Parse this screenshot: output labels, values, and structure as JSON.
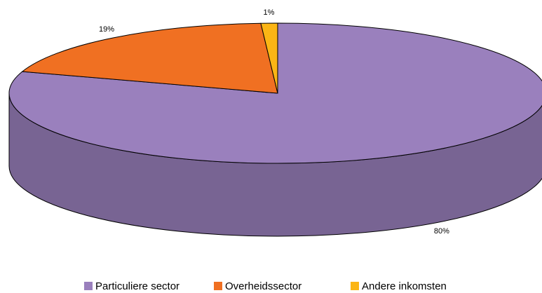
{
  "chart_data": {
    "type": "pie",
    "categories": [
      "Particuliere sector",
      "Overheidssector",
      "Andere inkomsten"
    ],
    "values": [
      80,
      19,
      1
    ],
    "value_labels": [
      "80%",
      "19%",
      "1%"
    ],
    "colors": [
      "#9a80bd",
      "#f07022",
      "#fbb515"
    ]
  }
}
